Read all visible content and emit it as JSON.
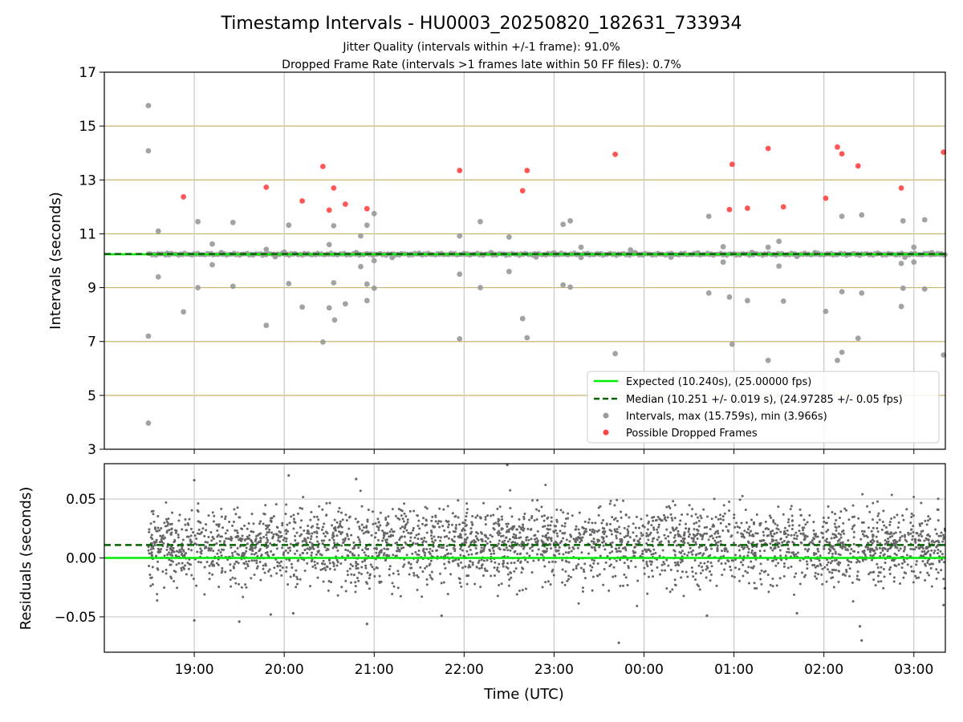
{
  "header": {
    "title": "Timestamp Intervals - HU0003_20250820_182631_733934",
    "subtitle_1": "Jitter Quality (intervals within +/-1 frame): 91.0%",
    "subtitle_2": "Dropped Frame Rate (intervals >1 frames late within 50 FF files): 0.7%"
  },
  "colors": {
    "expected": "#00ee00",
    "median": "#006400",
    "intervals": "#999999",
    "dropped": "#ff4444",
    "residuals": "#666666",
    "hgrid": "#c8b46e",
    "vgrid": "#c8c8c8"
  },
  "chart_data": [
    {
      "type": "scatter",
      "xlabel": "",
      "ylabel": "Intervals (seconds)",
      "x_range_hours": [
        18.0,
        27.35
      ],
      "ylim": [
        3,
        17
      ],
      "yticks": [
        3,
        5,
        7,
        9,
        11,
        13,
        15,
        17
      ],
      "grid": true,
      "legend_position": "lower-right",
      "expected_line": {
        "value": 10.24,
        "label": "Expected (10.240s), (25.00000 fps)"
      },
      "median_line": {
        "value": 10.251,
        "label": "Median (10.251 +/- 0.019 s), (24.97285 +/- 0.05 fps)"
      },
      "series": [
        {
          "name": "Intervals, max (15.759s), min (3.966s)",
          "points": [
            [
              18.49,
              15.76
            ],
            [
              18.49,
              14.08
            ],
            [
              18.49,
              7.2
            ],
            [
              18.49,
              3.97
            ],
            [
              18.6,
              11.1
            ],
            [
              18.6,
              9.4
            ],
            [
              18.88,
              8.1
            ],
            [
              19.04,
              11.45
            ],
            [
              19.04,
              9.0
            ],
            [
              19.2,
              10.62
            ],
            [
              19.2,
              9.85
            ],
            [
              19.43,
              11.42
            ],
            [
              19.43,
              9.05
            ],
            [
              19.8,
              10.42
            ],
            [
              19.8,
              7.6
            ],
            [
              20.05,
              11.32
            ],
            [
              20.05,
              9.15
            ],
            [
              20.2,
              8.28
            ],
            [
              20.43,
              6.98
            ],
            [
              20.5,
              10.6
            ],
            [
              20.5,
              8.25
            ],
            [
              20.55,
              11.3
            ],
            [
              20.55,
              9.18
            ],
            [
              20.56,
              7.8
            ],
            [
              20.68,
              8.4
            ],
            [
              20.85,
              10.92
            ],
            [
              20.85,
              9.78
            ],
            [
              20.92,
              11.32
            ],
            [
              20.92,
              9.13
            ],
            [
              20.92,
              8.52
            ],
            [
              21.0,
              11.75
            ],
            [
              21.0,
              8.98
            ],
            [
              21.0,
              10.0
            ],
            [
              21.95,
              10.92
            ],
            [
              21.95,
              9.5
            ],
            [
              21.95,
              7.1
            ],
            [
              22.18,
              11.45
            ],
            [
              22.18,
              9.0
            ],
            [
              22.5,
              10.88
            ],
            [
              22.5,
              9.6
            ],
            [
              22.65,
              7.85
            ],
            [
              22.7,
              7.14
            ],
            [
              23.1,
              11.35
            ],
            [
              23.1,
              9.1
            ],
            [
              23.18,
              11.48
            ],
            [
              23.18,
              9.02
            ],
            [
              23.3,
              10.12
            ],
            [
              23.3,
              10.5
            ],
            [
              23.68,
              6.55
            ],
            [
              23.85,
              10.4
            ],
            [
              24.72,
              11.65
            ],
            [
              24.72,
              8.8
            ],
            [
              24.88,
              10.52
            ],
            [
              24.88,
              9.95
            ],
            [
              24.95,
              8.65
            ],
            [
              24.98,
              6.9
            ],
            [
              25.15,
              8.52
            ],
            [
              25.38,
              10.5
            ],
            [
              25.38,
              6.3
            ],
            [
              25.5,
              10.72
            ],
            [
              25.5,
              9.8
            ],
            [
              25.55,
              8.5
            ],
            [
              26.02,
              8.12
            ],
            [
              26.15,
              6.3
            ],
            [
              26.2,
              11.65
            ],
            [
              26.2,
              8.85
            ],
            [
              26.2,
              6.6
            ],
            [
              26.38,
              7.12
            ],
            [
              26.42,
              11.7
            ],
            [
              26.42,
              8.8
            ],
            [
              26.86,
              9.9
            ],
            [
              26.86,
              8.3
            ],
            [
              26.88,
              11.48
            ],
            [
              26.88,
              8.98
            ],
            [
              27.0,
              10.5
            ],
            [
              27.0,
              9.95
            ],
            [
              27.12,
              11.52
            ],
            [
              27.12,
              8.95
            ],
            [
              27.33,
              6.5
            ],
            [
              18.7,
              10.28
            ],
            [
              19.3,
              10.3
            ],
            [
              20.0,
              10.32
            ],
            [
              20.8,
              10.3
            ],
            [
              21.5,
              10.28
            ],
            [
              22.3,
              10.3
            ],
            [
              23.0,
              10.29
            ],
            [
              23.9,
              10.3
            ],
            [
              24.6,
              10.29
            ],
            [
              25.2,
              10.31
            ],
            [
              25.9,
              10.3
            ],
            [
              26.6,
              10.28
            ],
            [
              27.2,
              10.3
            ],
            [
              19.9,
              10.15
            ],
            [
              21.2,
              10.12
            ],
            [
              22.8,
              10.14
            ],
            [
              24.3,
              10.13
            ],
            [
              25.7,
              10.16
            ],
            [
              26.9,
              10.13
            ]
          ]
        },
        {
          "name": "Possible Dropped Frames",
          "points": [
            [
              18.88,
              12.37
            ],
            [
              19.8,
              12.73
            ],
            [
              20.2,
              12.22
            ],
            [
              20.43,
              13.5
            ],
            [
              20.5,
              11.88
            ],
            [
              20.55,
              12.7
            ],
            [
              20.68,
              12.1
            ],
            [
              20.92,
              11.93
            ],
            [
              21.95,
              13.35
            ],
            [
              22.65,
              12.6
            ],
            [
              22.7,
              13.35
            ],
            [
              23.68,
              13.95
            ],
            [
              24.98,
              13.58
            ],
            [
              24.95,
              11.9
            ],
            [
              25.15,
              11.95
            ],
            [
              25.38,
              14.17
            ],
            [
              25.55,
              12.0
            ],
            [
              26.02,
              12.32
            ],
            [
              26.15,
              14.22
            ],
            [
              26.2,
              13.97
            ],
            [
              26.38,
              13.52
            ],
            [
              26.86,
              12.7
            ],
            [
              27.33,
              14.03
            ]
          ]
        }
      ]
    },
    {
      "type": "scatter",
      "xlabel": "Time (UTC)",
      "ylabel": "Residuals (seconds)",
      "x_range_hours": [
        18.0,
        27.35
      ],
      "x_start_hour": 18.49,
      "x_end_hour": 27.35,
      "ylim": [
        -0.08,
        0.08
      ],
      "yticks": [
        0.05,
        0.0,
        -0.05
      ],
      "ytick_labels": [
        "0.05",
        "0.00",
        "−0.05"
      ],
      "xtick_hours": [
        19,
        20,
        21,
        22,
        23,
        24,
        25,
        26,
        27
      ],
      "xtick_labels": [
        "19:00",
        "20:00",
        "21:00",
        "22:00",
        "23:00",
        "00:00",
        "01:00",
        "02:00",
        "03:00"
      ],
      "grid": true,
      "expected_line": {
        "value": 0.0
      },
      "median_line": {
        "value": 0.011
      },
      "series": [
        {
          "name": "Residuals",
          "count": 3100,
          "mean": 0.011,
          "std": 0.018,
          "outliers": [
            [
              20.05,
              0.07
            ],
            [
              22.48,
              0.079
            ],
            [
              23.72,
              -0.072
            ],
            [
              26.42,
              -0.07
            ],
            [
              19.0,
              0.066
            ],
            [
              20.8,
              0.067
            ],
            [
              19.0,
              -0.053
            ],
            [
              19.5,
              -0.054
            ],
            [
              20.92,
              -0.056
            ],
            [
              27.33,
              -0.04
            ],
            [
              19.85,
              -0.048
            ],
            [
              21.75,
              -0.049
            ],
            [
              24.7,
              -0.049
            ],
            [
              25.7,
              -0.047
            ],
            [
              26.4,
              -0.058
            ],
            [
              20.1,
              -0.047
            ]
          ]
        }
      ]
    }
  ]
}
